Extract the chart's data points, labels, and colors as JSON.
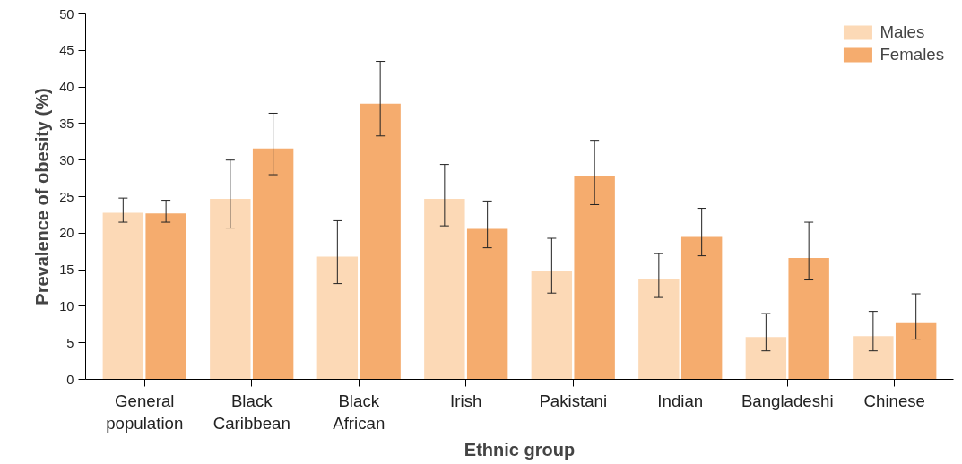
{
  "chart_data": {
    "type": "bar",
    "xlabel": "Ethnic group",
    "ylabel": "Prevalence of obesity (%)",
    "categories": [
      "General population",
      "Black Caribbean",
      "Black African",
      "Irish",
      "Pakistani",
      "Indian",
      "Bangladeshi",
      "Chinese"
    ],
    "series": [
      {
        "name": "Males",
        "color": "#fcd9b6",
        "values": [
          22.8,
          24.7,
          16.8,
          24.7,
          14.8,
          13.7,
          5.8,
          5.9
        ],
        "errors": [
          [
            21.5,
            24.8
          ],
          [
            20.7,
            30.0
          ],
          [
            13.1,
            21.7
          ],
          [
            21.0,
            29.4
          ],
          [
            11.8,
            19.3
          ],
          [
            11.2,
            17.2
          ],
          [
            3.9,
            9.0
          ],
          [
            3.9,
            9.3
          ]
        ]
      },
      {
        "name": "Females",
        "color": "#f5ac6e",
        "values": [
          22.7,
          31.6,
          37.7,
          20.6,
          27.8,
          19.5,
          16.6,
          7.7
        ],
        "errors": [
          [
            21.5,
            24.5
          ],
          [
            28.0,
            36.4
          ],
          [
            33.3,
            43.5
          ],
          [
            18.0,
            24.4
          ],
          [
            23.9,
            32.7
          ],
          [
            16.9,
            23.4
          ],
          [
            13.6,
            21.5
          ],
          [
            5.5,
            11.7
          ]
        ]
      }
    ],
    "ylim": [
      0,
      50
    ],
    "yticks": [
      0,
      5,
      10,
      15,
      20,
      25,
      30,
      35,
      40,
      45,
      50
    ],
    "grid": false,
    "legend": "top right"
  }
}
